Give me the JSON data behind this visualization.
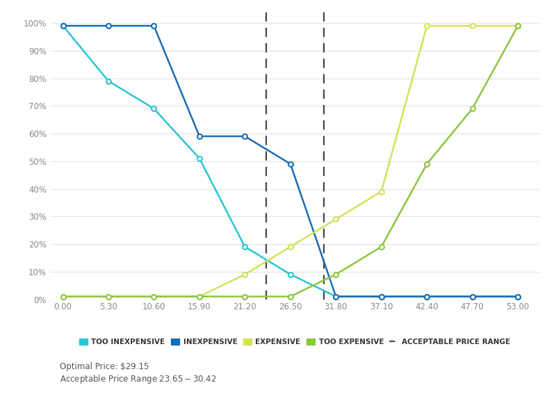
{
  "x_ticks": [
    0.0,
    5.3,
    10.6,
    15.9,
    21.2,
    26.5,
    31.8,
    37.1,
    42.4,
    47.7,
    53.0
  ],
  "too_inexpensive": {
    "x": [
      0.0,
      5.3,
      10.6,
      15.9,
      21.2,
      26.5,
      31.8,
      37.1,
      42.4,
      47.7,
      53.0
    ],
    "y": [
      0.99,
      0.79,
      0.69,
      0.51,
      0.19,
      0.09,
      0.01,
      0.01,
      0.01,
      0.01,
      0.01
    ],
    "color": "#29C6D4",
    "label": "TOO INEXPENSIVE"
  },
  "inexpensive": {
    "x": [
      0.0,
      5.3,
      10.6,
      15.9,
      21.2,
      26.5,
      31.8,
      37.1,
      42.4,
      47.7,
      53.0
    ],
    "y": [
      0.99,
      0.99,
      0.99,
      0.59,
      0.59,
      0.49,
      0.01,
      0.01,
      0.01,
      0.01,
      0.01
    ],
    "color": "#1A6BB5",
    "label": "INEXPENSIVE"
  },
  "expensive": {
    "x": [
      0.0,
      5.3,
      10.6,
      15.9,
      21.2,
      26.5,
      31.8,
      37.1,
      42.4,
      47.7,
      53.0
    ],
    "y": [
      0.01,
      0.01,
      0.01,
      0.01,
      0.09,
      0.19,
      0.29,
      0.39,
      0.99,
      0.99,
      0.99
    ],
    "color": "#D4E157",
    "label": "EXPENSIVE"
  },
  "too_expensive": {
    "x": [
      0.0,
      5.3,
      10.6,
      15.9,
      21.2,
      26.5,
      31.8,
      37.1,
      42.4,
      47.7,
      53.0
    ],
    "y": [
      0.01,
      0.01,
      0.01,
      0.01,
      0.01,
      0.01,
      0.09,
      0.19,
      0.49,
      0.69,
      0.99
    ],
    "color": "#8DC63F",
    "label": "TOO EXPENSIVE"
  },
  "vline1": 23.65,
  "vline2": 30.42,
  "optimal_price": 29.15,
  "acceptable_range_low": 23.65,
  "acceptable_range_high": 30.42,
  "annotation_line1": "Optimal Price: $29.15",
  "annotation_line2": "Acceptable Price Range $23.65 - $30.42",
  "ylim": [
    0,
    1.04
  ],
  "xlim": [
    -1.5,
    55.5
  ],
  "background_color": "#FFFFFF",
  "grid_color": "#E5E5E5",
  "dashed_color": "#444444",
  "tick_color": "#888888",
  "legend_label_color": "#333333"
}
